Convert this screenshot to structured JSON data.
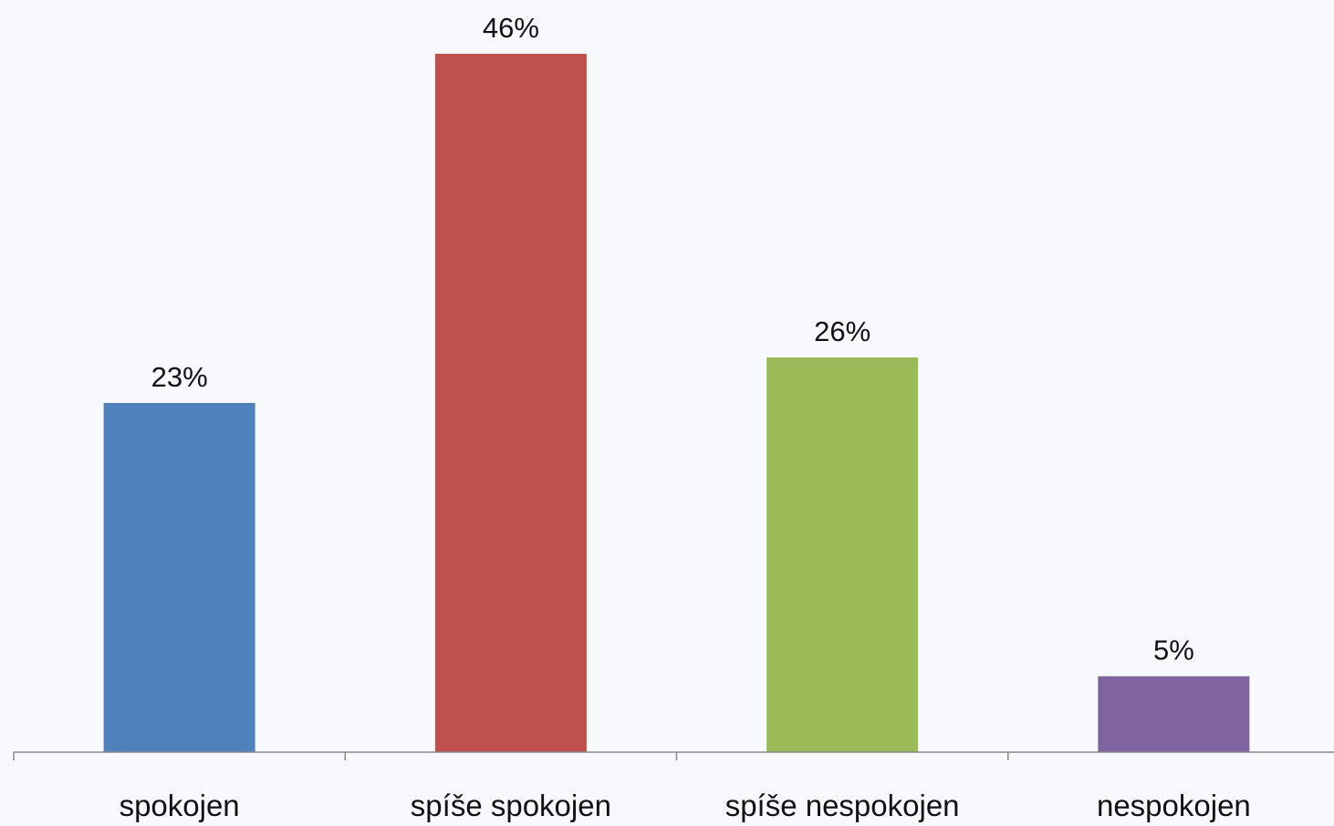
{
  "chart_data": {
    "type": "bar",
    "categories": [
      "spokojen",
      "spíše spokojen",
      "spíše nespokojen",
      "nespokojen"
    ],
    "values": [
      23,
      46,
      26,
      5
    ],
    "value_labels": [
      "23%",
      "46%",
      "26%",
      "5%"
    ],
    "colors": [
      "#4f81bd",
      "#c0504d",
      "#9bbb59",
      "#8064a2"
    ],
    "ylim": [
      0,
      46
    ],
    "grid": false,
    "legend": "none",
    "title": "",
    "xlabel": "",
    "ylabel": ""
  }
}
